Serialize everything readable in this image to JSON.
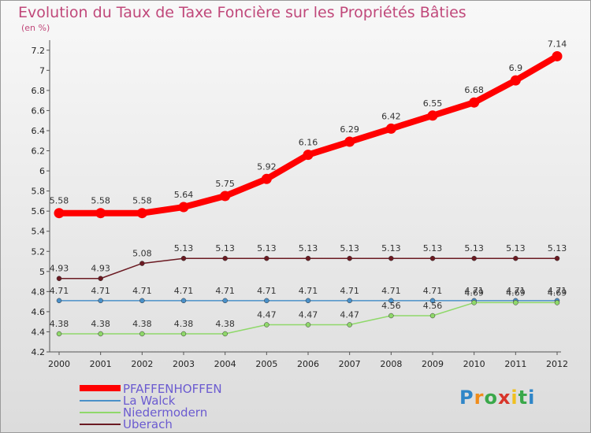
{
  "title": "Evolution du Taux de Taxe Foncière sur les Propriétés Bâties",
  "subtitle": "(en %)",
  "logo": "Proxiti",
  "chart_data": {
    "type": "line",
    "x": [
      "2000",
      "2001",
      "2002",
      "2003",
      "2004",
      "2005",
      "2006",
      "2007",
      "2008",
      "2009",
      "2010",
      "2011",
      "2012"
    ],
    "ylim": [
      4.2,
      7.3
    ],
    "yticks": [
      4.2,
      4.4,
      4.6,
      4.8,
      5,
      5.2,
      5.4,
      5.6,
      5.8,
      6,
      6.2,
      6.4,
      6.6,
      6.8,
      7,
      7.2
    ],
    "grid": false,
    "legend_position": "bottom-left",
    "series": [
      {
        "name": "PFAFFENHOFFEN",
        "color": "#ff0000",
        "values": [
          5.58,
          5.58,
          5.58,
          5.64,
          5.75,
          5.92,
          6.16,
          6.29,
          6.42,
          6.55,
          6.68,
          6.9,
          7.14
        ],
        "labels": [
          "5.58",
          "5.58",
          "5.58",
          "5.64",
          "5.75",
          "5.92",
          "6.16",
          "6.29",
          "6.42",
          "6.55",
          "6.68",
          "6.9",
          "7.14"
        ]
      },
      {
        "name": "La Walck",
        "color": "#4a90c8",
        "values": [
          4.71,
          4.71,
          4.71,
          4.71,
          4.71,
          4.71,
          4.71,
          4.71,
          4.71,
          4.71,
          4.71,
          4.71,
          4.71
        ],
        "labels": [
          "4.71",
          "4.71",
          "4.71",
          "4.71",
          "4.71",
          "4.71",
          "4.71",
          "4.71",
          "4.71",
          "4.71",
          "4.71",
          "4.71",
          "4.71"
        ]
      },
      {
        "name": "Niedermodern",
        "color": "#8fd86a",
        "values": [
          4.38,
          4.38,
          4.38,
          4.38,
          4.38,
          4.47,
          4.47,
          4.47,
          4.56,
          4.56,
          4.69,
          4.69,
          4.69
        ],
        "labels": [
          "4.38",
          "4.38",
          "4.38",
          "4.38",
          "4.38",
          "4.47",
          "4.47",
          "4.47",
          "4.56",
          "4.56",
          "4.69",
          "4.69",
          "4.69"
        ]
      },
      {
        "name": "Uberach",
        "color": "#6b1a22",
        "values": [
          4.93,
          4.93,
          5.08,
          5.13,
          5.13,
          5.13,
          5.13,
          5.13,
          5.13,
          5.13,
          5.13,
          5.13,
          5.13
        ],
        "labels": [
          "4.93",
          "4.93",
          "5.08",
          "5.13",
          "5.13",
          "5.13",
          "5.13",
          "5.13",
          "5.13",
          "5.13",
          "5.13",
          "5.13",
          "5.13"
        ]
      }
    ]
  }
}
